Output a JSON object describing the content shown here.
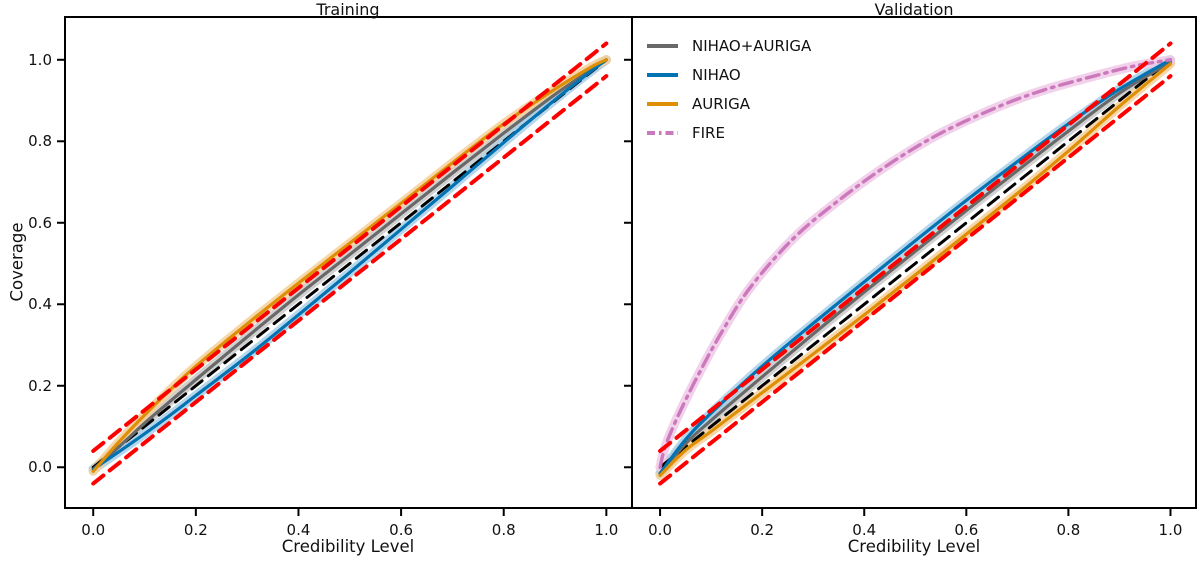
{
  "figure": {
    "ylabel": "Coverage",
    "background_color": "#ffffff",
    "axis_color": "#000000"
  },
  "chart_data": [
    {
      "type": "line",
      "title": "Training",
      "xlabel": "Credibility Level",
      "ylabel": "Coverage",
      "xlim": [
        -0.055,
        1.05
      ],
      "ylim": [
        -0.1,
        1.105
      ],
      "xticks": [
        0.0,
        0.2,
        0.4,
        0.6,
        0.8,
        1.0
      ],
      "xtick_labels": [
        "0.0",
        "0.2",
        "0.4",
        "0.6",
        "0.8",
        "1.0"
      ],
      "yticks": [
        0.0,
        0.2,
        0.4,
        0.6,
        0.8,
        1.0
      ],
      "ytick_labels": [
        "0.0",
        "0.2",
        "0.4",
        "0.6",
        "0.8",
        "1.0"
      ],
      "grid": false,
      "reference_lines": [
        {
          "name": "identity",
          "color": "#000000",
          "style": "dashed",
          "width": 3,
          "layer": "below",
          "points": [
            [
              0,
              0
            ],
            [
              1,
              1
            ]
          ]
        },
        {
          "name": "upper-bound",
          "color": "#ff0000",
          "style": "dashed",
          "width": 4,
          "layer": "above",
          "points": [
            [
              0,
              0.04
            ],
            [
              1,
              1.04
            ]
          ]
        },
        {
          "name": "lower-bound",
          "color": "#ff0000",
          "style": "dashed",
          "width": 4,
          "layer": "above",
          "points": [
            [
              0,
              -0.04
            ],
            [
              1,
              0.96
            ]
          ]
        }
      ],
      "series": [
        {
          "name": "NIHAO+AURIGA",
          "color": "#696969",
          "band_color": "#c9c9c9",
          "style": "solid",
          "width": 3.2,
          "points": [
            [
              0,
              -0.005
            ],
            [
              0.05,
              0.05
            ],
            [
              0.1,
              0.108
            ],
            [
              0.15,
              0.162
            ],
            [
              0.2,
              0.215
            ],
            [
              0.3,
              0.32
            ],
            [
              0.4,
              0.423
            ],
            [
              0.5,
              0.522
            ],
            [
              0.6,
              0.622
            ],
            [
              0.7,
              0.722
            ],
            [
              0.8,
              0.82
            ],
            [
              0.9,
              0.915
            ],
            [
              0.97,
              0.975
            ],
            [
              1,
              1
            ]
          ]
        },
        {
          "name": "NIHAO",
          "color": "#0173b2",
          "band_color": "#a9cfe9",
          "style": "solid",
          "width": 3.2,
          "points": [
            [
              0,
              -0.005
            ],
            [
              0.05,
              0.038
            ],
            [
              0.1,
              0.082
            ],
            [
              0.15,
              0.128
            ],
            [
              0.2,
              0.176
            ],
            [
              0.3,
              0.272
            ],
            [
              0.4,
              0.374
            ],
            [
              0.5,
              0.478
            ],
            [
              0.6,
              0.584
            ],
            [
              0.7,
              0.69
            ],
            [
              0.8,
              0.797
            ],
            [
              0.9,
              0.902
            ],
            [
              0.97,
              0.972
            ],
            [
              1,
              1
            ]
          ]
        },
        {
          "name": "AURIGA",
          "color": "#de8f05",
          "band_color": "#f6d09a",
          "style": "solid",
          "width": 3.2,
          "points": [
            [
              0,
              -0.01
            ],
            [
              0.05,
              0.062
            ],
            [
              0.1,
              0.128
            ],
            [
              0.15,
              0.19
            ],
            [
              0.2,
              0.248
            ],
            [
              0.3,
              0.352
            ],
            [
              0.4,
              0.452
            ],
            [
              0.5,
              0.55
            ],
            [
              0.6,
              0.648
            ],
            [
              0.7,
              0.747
            ],
            [
              0.8,
              0.843
            ],
            [
              0.9,
              0.928
            ],
            [
              0.97,
              0.982
            ],
            [
              1,
              1
            ]
          ]
        }
      ]
    },
    {
      "type": "line",
      "title": "Validation",
      "xlabel": "Credibility Level",
      "ylabel": "",
      "xlim": [
        -0.055,
        1.05
      ],
      "ylim": [
        -0.1,
        1.105
      ],
      "xticks": [
        0.0,
        0.2,
        0.4,
        0.6,
        0.8,
        1.0
      ],
      "xtick_labels": [
        "0.0",
        "0.2",
        "0.4",
        "0.6",
        "0.8",
        "1.0"
      ],
      "yticks": [
        0.0,
        0.2,
        0.4,
        0.6,
        0.8,
        1.0
      ],
      "ytick_labels": [],
      "grid": false,
      "legend": {
        "position": "upper left",
        "frame": false,
        "entries": [
          {
            "label": "NIHAO+AURIGA",
            "color": "#696969",
            "style": "solid"
          },
          {
            "label": "NIHAO",
            "color": "#0173b2",
            "style": "solid"
          },
          {
            "label": "AURIGA",
            "color": "#de8f05",
            "style": "solid"
          },
          {
            "label": "FIRE",
            "color": "#cc78bc",
            "style": "dashdot"
          }
        ]
      },
      "reference_lines": [
        {
          "name": "identity",
          "color": "#000000",
          "style": "dashed",
          "width": 3,
          "layer": "below",
          "points": [
            [
              0,
              0
            ],
            [
              1,
              1
            ]
          ]
        },
        {
          "name": "upper-bound",
          "color": "#ff0000",
          "style": "dashed",
          "width": 4,
          "layer": "above",
          "points": [
            [
              0,
              0.04
            ],
            [
              1,
              1.04
            ]
          ]
        },
        {
          "name": "lower-bound",
          "color": "#ff0000",
          "style": "dashed",
          "width": 4,
          "layer": "above",
          "points": [
            [
              0,
              -0.04
            ],
            [
              1,
              0.96
            ]
          ]
        }
      ],
      "series": [
        {
          "name": "NIHAO+AURIGA",
          "color": "#696969",
          "band_color": "#c9c9c9",
          "style": "solid",
          "width": 3.2,
          "points": [
            [
              0,
              -0.015
            ],
            [
              0.05,
              0.058
            ],
            [
              0.1,
              0.115
            ],
            [
              0.2,
              0.222
            ],
            [
              0.3,
              0.327
            ],
            [
              0.4,
              0.43
            ],
            [
              0.5,
              0.53
            ],
            [
              0.6,
              0.63
            ],
            [
              0.7,
              0.728
            ],
            [
              0.8,
              0.825
            ],
            [
              0.9,
              0.918
            ],
            [
              1,
              0.995
            ]
          ]
        },
        {
          "name": "NIHAO",
          "color": "#0173b2",
          "band_color": "#a9cfe9",
          "style": "solid",
          "width": 3.2,
          "points": [
            [
              0,
              -0.015
            ],
            [
              0.05,
              0.068
            ],
            [
              0.1,
              0.133
            ],
            [
              0.2,
              0.248
            ],
            [
              0.3,
              0.353
            ],
            [
              0.4,
              0.455
            ],
            [
              0.5,
              0.556
            ],
            [
              0.6,
              0.655
            ],
            [
              0.7,
              0.75
            ],
            [
              0.8,
              0.843
            ],
            [
              0.9,
              0.928
            ],
            [
              1,
              1
            ]
          ]
        },
        {
          "name": "AURIGA",
          "color": "#de8f05",
          "band_color": "#f6d09a",
          "style": "solid",
          "width": 3.2,
          "points": [
            [
              0,
              -0.02
            ],
            [
              0.05,
              0.042
            ],
            [
              0.1,
              0.088
            ],
            [
              0.2,
              0.183
            ],
            [
              0.3,
              0.278
            ],
            [
              0.4,
              0.374
            ],
            [
              0.5,
              0.472
            ],
            [
              0.6,
              0.572
            ],
            [
              0.7,
              0.672
            ],
            [
              0.8,
              0.776
            ],
            [
              0.9,
              0.886
            ],
            [
              1,
              0.99
            ]
          ]
        },
        {
          "name": "FIRE",
          "color": "#cc78bc",
          "band_color": "#f0c9e8",
          "style": "dashdot",
          "width": 3.4,
          "points": [
            [
              0,
              0
            ],
            [
              0.01,
              0.05
            ],
            [
              0.033,
              0.12
            ],
            [
              0.072,
              0.22
            ],
            [
              0.12,
              0.33
            ],
            [
              0.176,
              0.44
            ],
            [
              0.26,
              0.56
            ],
            [
              0.35,
              0.655
            ],
            [
              0.45,
              0.745
            ],
            [
              0.55,
              0.82
            ],
            [
              0.663,
              0.885
            ],
            [
              0.75,
              0.925
            ],
            [
              0.85,
              0.96
            ],
            [
              0.93,
              0.985
            ],
            [
              1,
              1
            ]
          ]
        }
      ]
    }
  ]
}
